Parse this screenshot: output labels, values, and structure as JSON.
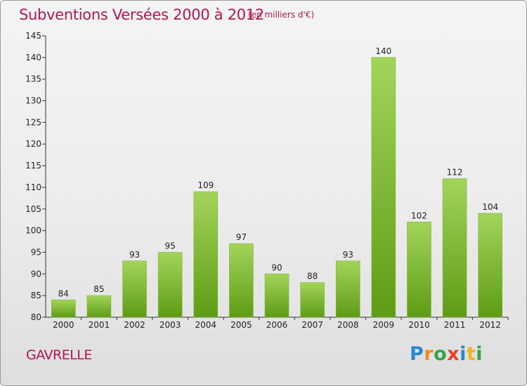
{
  "header": {
    "title": "Subventions Versées 2000 à 2012",
    "subtitle": "(en milliers d'€)"
  },
  "footer": {
    "place": "GAVRELLE",
    "logo": [
      "P",
      "r",
      "o",
      "x",
      "i",
      "t",
      "i"
    ]
  },
  "colors": {
    "title": "#b0174e",
    "bar_top": "#a3d45a",
    "bar_bottom": "#5e9c14"
  },
  "chart_data": {
    "type": "bar",
    "title": "Subventions Versées 2000 à 2012",
    "subtitle": "(en milliers d'€)",
    "categories": [
      "2000",
      "2001",
      "2002",
      "2003",
      "2004",
      "2005",
      "2006",
      "2007",
      "2008",
      "2009",
      "2010",
      "2011",
      "2012"
    ],
    "values": [
      84,
      85,
      93,
      95,
      109,
      97,
      90,
      88,
      93,
      140,
      102,
      112,
      104
    ],
    "ylim": [
      80,
      145
    ],
    "yticks": [
      80,
      85,
      90,
      95,
      100,
      105,
      110,
      115,
      120,
      125,
      130,
      135,
      140,
      145
    ],
    "grid": false,
    "xlabel": "",
    "ylabel": ""
  }
}
